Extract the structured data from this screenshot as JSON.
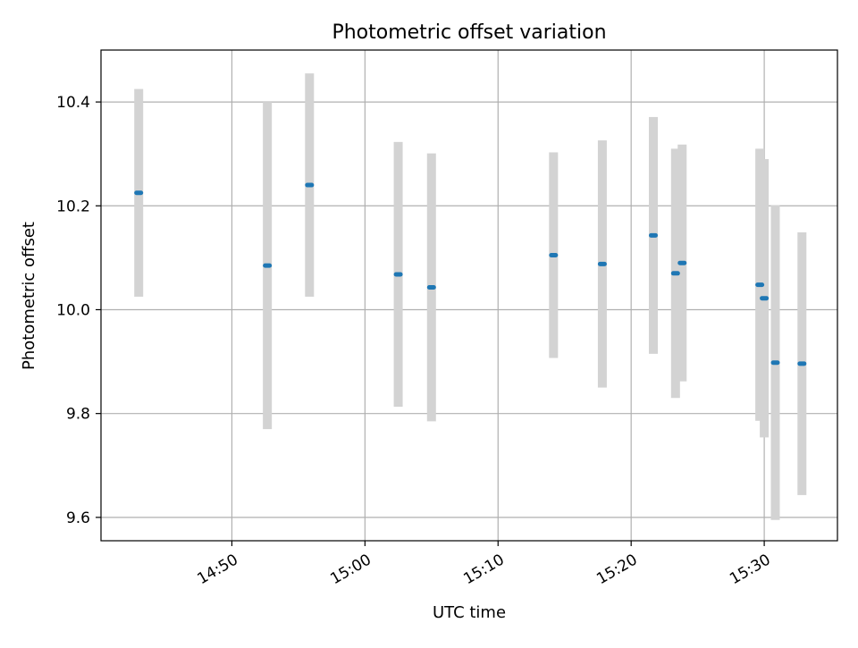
{
  "chart_data": {
    "type": "scatter",
    "title": "Photometric offset variation",
    "xlabel": "UTC time",
    "ylabel": "Photometric offset",
    "xlim": [
      "14:40:10",
      "15:35:30"
    ],
    "ylim": [
      9.555,
      10.5
    ],
    "xticks": [
      "14:50",
      "15:00",
      "15:10",
      "15:20",
      "15:30"
    ],
    "yticks": [
      9.6,
      9.8,
      10.0,
      10.2,
      10.4
    ],
    "ytick_labels": [
      "9.6",
      "9.8",
      "10.0",
      "10.2",
      "10.4"
    ],
    "grid": true,
    "colors": {
      "point": "#1f77b4",
      "errorbar": "#d3d3d3",
      "grid": "#b0b0b0"
    },
    "points": [
      {
        "t": "14:43:00",
        "y": 10.225,
        "err": 0.2
      },
      {
        "t": "14:52:40",
        "y": 10.085,
        "err": 0.315
      },
      {
        "t": "14:55:50",
        "y": 10.24,
        "err": 0.215
      },
      {
        "t": "15:02:30",
        "y": 10.068,
        "err": 0.255
      },
      {
        "t": "15:05:00",
        "y": 10.043,
        "err": 0.258
      },
      {
        "t": "15:14:10",
        "y": 10.105,
        "err": 0.198
      },
      {
        "t": "15:17:50",
        "y": 10.088,
        "err": 0.238
      },
      {
        "t": "15:21:40",
        "y": 10.143,
        "err": 0.228
      },
      {
        "t": "15:23:20",
        "y": 10.07,
        "err": 0.24
      },
      {
        "t": "15:23:50",
        "y": 10.09,
        "err": 0.228
      },
      {
        "t": "15:29:40",
        "y": 10.048,
        "err": 0.262
      },
      {
        "t": "15:30:00",
        "y": 10.022,
        "err": 0.268
      },
      {
        "t": "15:30:50",
        "y": 9.898,
        "err": 0.303
      },
      {
        "t": "15:32:50",
        "y": 9.896,
        "err": 0.253
      }
    ]
  }
}
